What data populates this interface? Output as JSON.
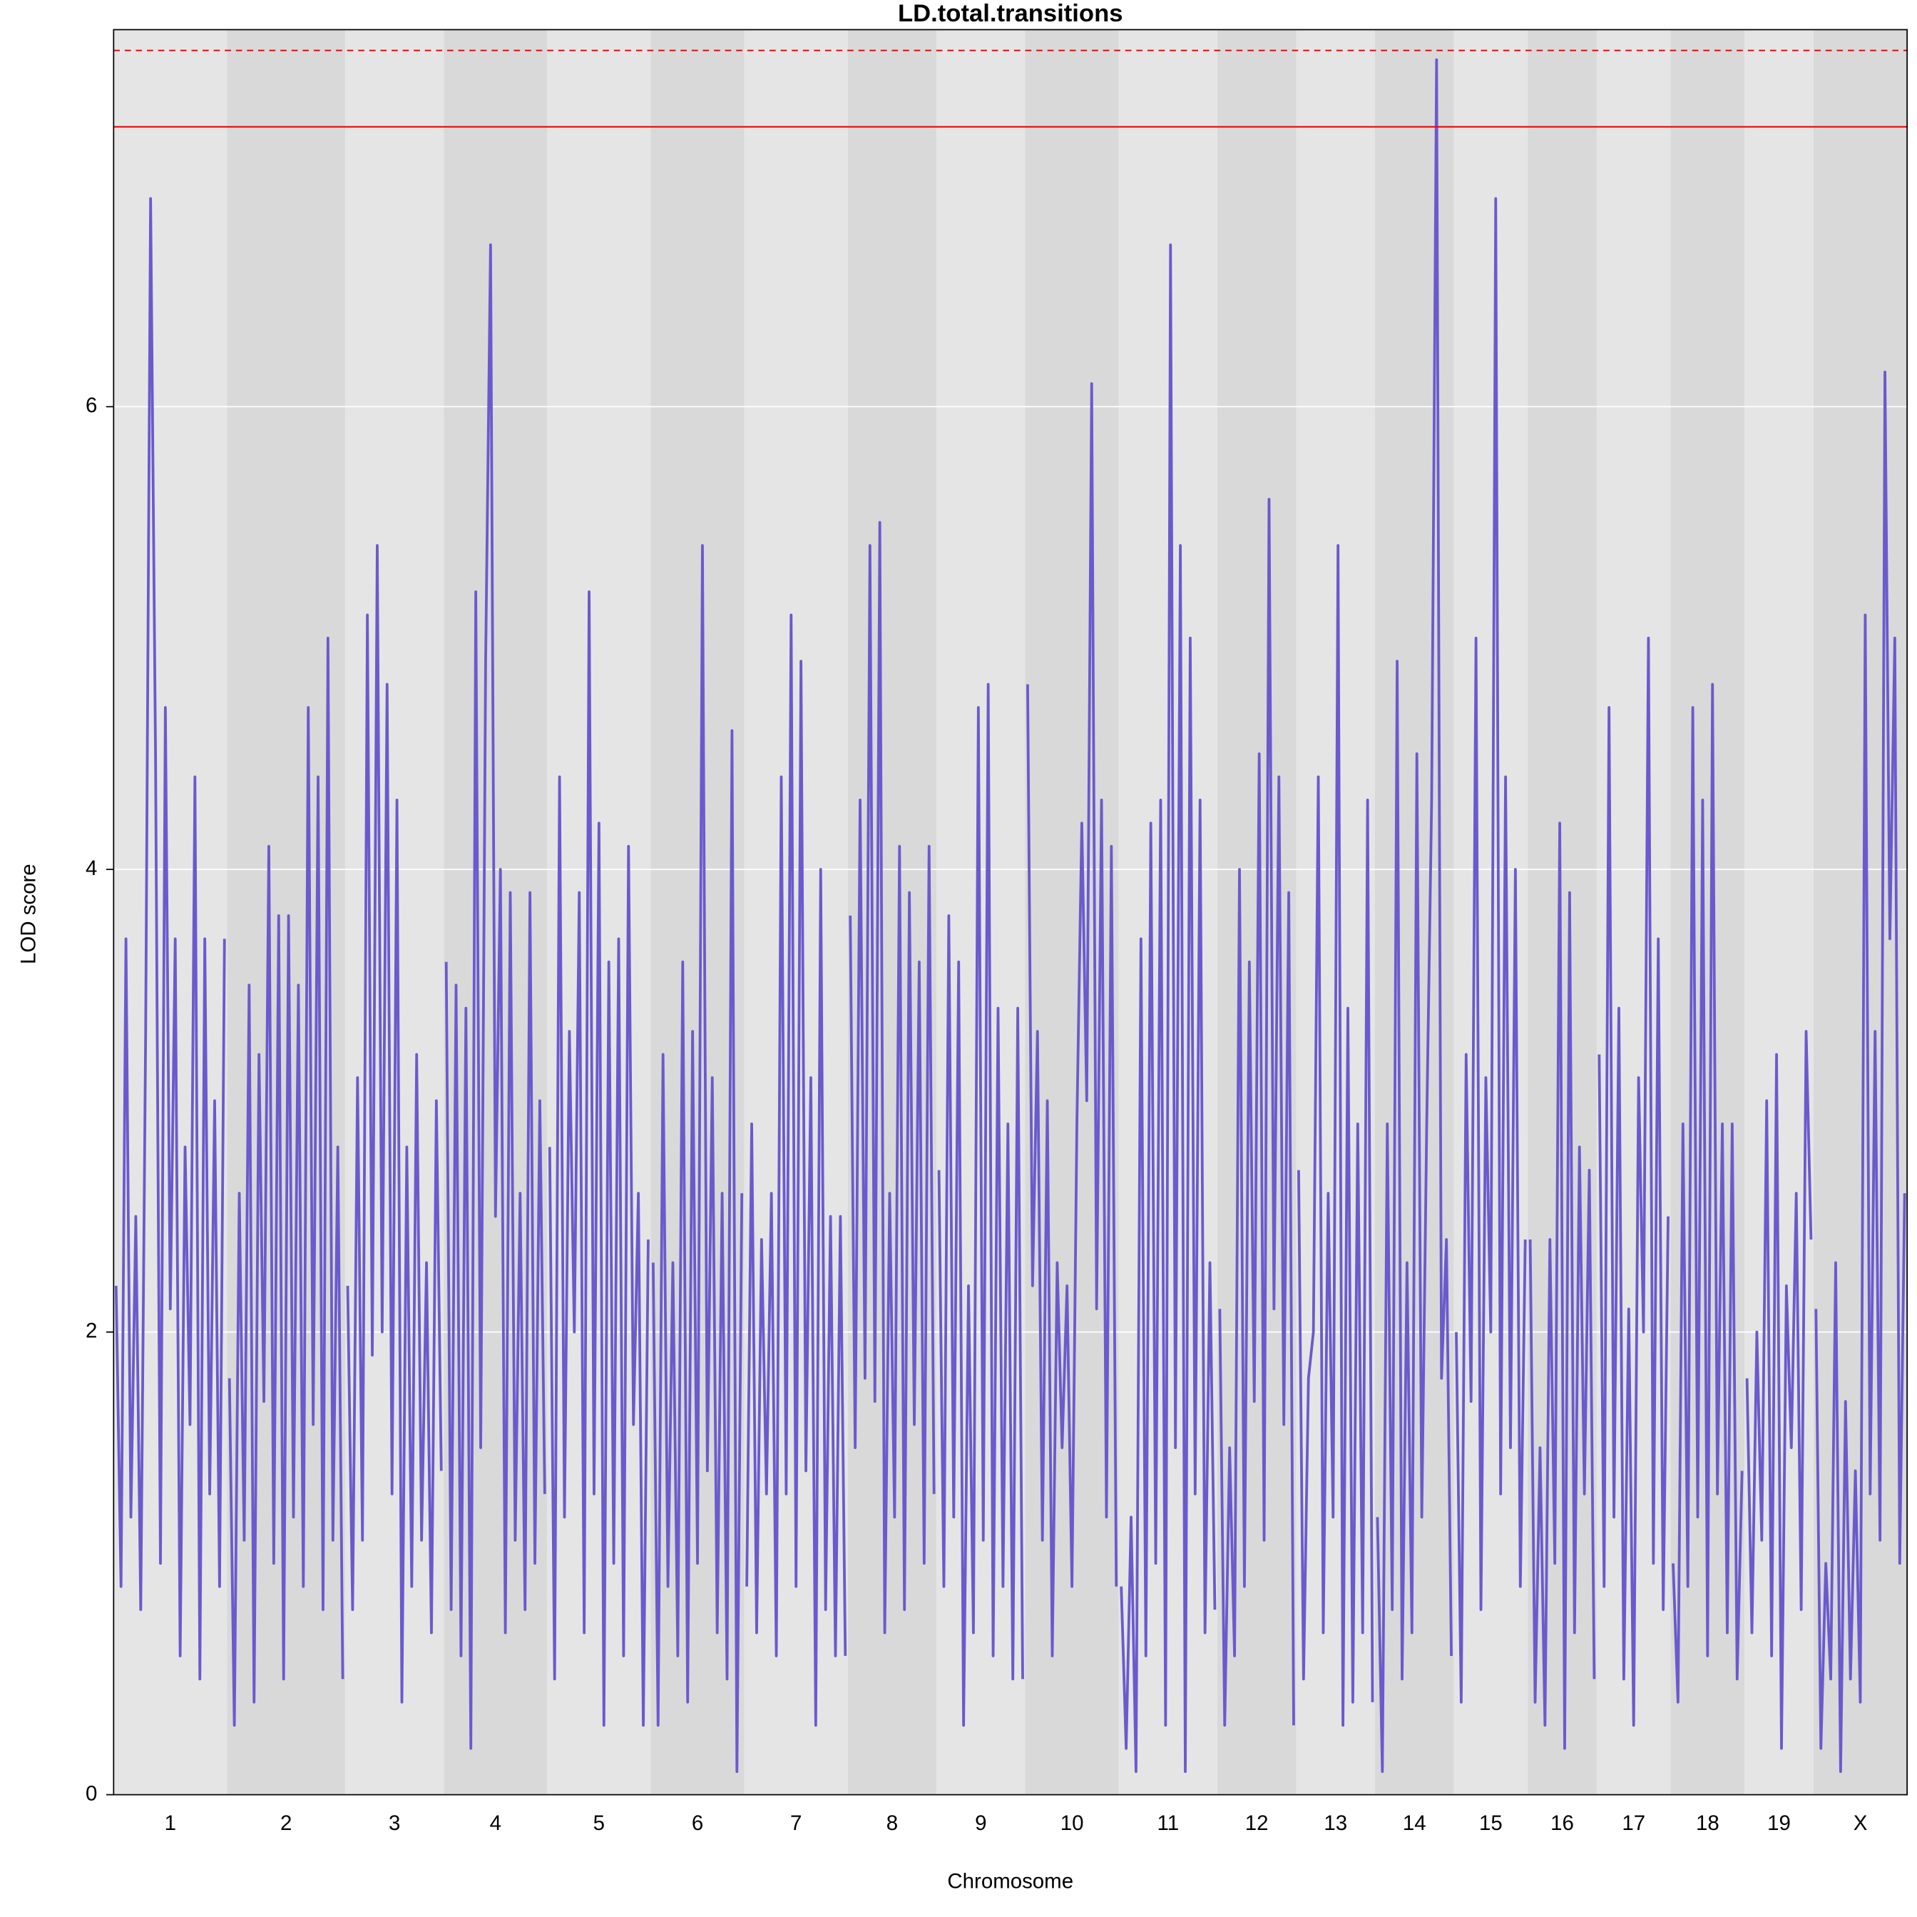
{
  "chart_data": {
    "type": "line",
    "title": "LD.total.transitions",
    "x_label": "Chromosome",
    "y_label": "LOD score",
    "ylim": [
      0,
      7.63
    ],
    "yticks": [
      0,
      2,
      4,
      6
    ],
    "grid": true,
    "color": "#6a5acd",
    "band_colors": [
      "#e5e5e5",
      "#d9d9d9"
    ],
    "thresholds": [
      {
        "value": 7.21,
        "style": "solid",
        "color": "#ff0000"
      },
      {
        "value": 7.54,
        "style": "dashed",
        "color": "#ff0000"
      }
    ],
    "series": [
      {
        "name": "1",
        "values": [
          2.2,
          0.9,
          3.7,
          1.2,
          2.5,
          0.8,
          3.3,
          6.9,
          4.5,
          1.0,
          4.7,
          2.1,
          3.7,
          0.6,
          2.8,
          1.6,
          4.4,
          0.5,
          3.7,
          1.3,
          3.0,
          0.9,
          3.7
        ]
      },
      {
        "name": "2",
        "values": [
          1.8,
          0.3,
          2.6,
          1.1,
          3.5,
          0.4,
          3.2,
          1.7,
          4.1,
          1.0,
          3.8,
          0.5,
          3.8,
          1.2,
          3.5,
          0.9,
          4.7,
          1.6,
          4.4,
          0.8,
          5.0,
          1.1,
          2.8,
          0.5
        ]
      },
      {
        "name": "3",
        "values": [
          2.2,
          0.8,
          3.1,
          1.1,
          5.1,
          1.9,
          5.4,
          2.0,
          4.8,
          1.3,
          4.3,
          0.4,
          2.8,
          0.9,
          3.2,
          1.1,
          2.3,
          0.7,
          3.0,
          1.4
        ]
      },
      {
        "name": "4",
        "values": [
          3.6,
          0.8,
          3.5,
          0.6,
          3.4,
          0.2,
          5.2,
          1.5,
          4.9,
          6.7,
          2.5,
          4.0,
          0.7,
          3.9,
          1.1,
          2.6,
          0.8,
          3.9,
          1.0,
          3.0,
          1.3
        ]
      },
      {
        "name": "5",
        "values": [
          2.8,
          0.5,
          4.4,
          1.2,
          3.3,
          2.0,
          3.9,
          0.7,
          5.2,
          1.3,
          4.2,
          0.3,
          3.6,
          1.0,
          3.7,
          0.6,
          4.1,
          1.6,
          2.6,
          0.3,
          2.4
        ]
      },
      {
        "name": "6",
        "values": [
          2.3,
          0.3,
          3.2,
          0.9,
          2.3,
          0.6,
          3.6,
          0.4,
          3.3,
          1.0,
          5.4,
          1.4,
          3.1,
          0.7,
          2.6,
          0.5,
          4.6,
          0.1,
          2.6
        ]
      },
      {
        "name": "7",
        "values": [
          0.9,
          2.9,
          0.7,
          2.4,
          1.3,
          2.6,
          0.6,
          4.4,
          1.3,
          5.1,
          0.9,
          4.9,
          1.4,
          3.1,
          0.3,
          4.0,
          0.8,
          2.5,
          0.6,
          2.5,
          0.6
        ]
      },
      {
        "name": "8",
        "values": [
          3.8,
          1.5,
          4.3,
          1.8,
          5.4,
          1.7,
          5.5,
          0.7,
          2.6,
          1.2,
          4.1,
          0.8,
          3.9,
          1.6,
          3.6,
          1.0,
          4.1,
          1.3
        ]
      },
      {
        "name": "9",
        "values": [
          2.7,
          0.9,
          3.8,
          1.2,
          3.6,
          0.3,
          2.2,
          0.7,
          4.7,
          1.1,
          4.8,
          0.6,
          3.4,
          0.9,
          2.9,
          0.5,
          3.4,
          0.5
        ]
      },
      {
        "name": "10",
        "values": [
          4.8,
          2.2,
          3.3,
          1.1,
          3.0,
          0.6,
          2.3,
          1.5,
          2.2,
          0.9,
          2.9,
          4.2,
          3.0,
          6.1,
          2.1,
          4.3,
          1.2,
          4.1,
          0.9
        ]
      },
      {
        "name": "11",
        "values": [
          0.9,
          0.2,
          1.2,
          0.1,
          3.7,
          0.6,
          4.2,
          1.0,
          4.3,
          0.3,
          6.7,
          1.5,
          5.4,
          0.1,
          5.0,
          1.3,
          4.3,
          0.7,
          2.3,
          0.8
        ]
      },
      {
        "name": "12",
        "values": [
          2.1,
          0.3,
          1.5,
          0.6,
          4.0,
          0.9,
          3.6,
          1.7,
          4.5,
          1.1,
          5.6,
          2.1,
          4.4,
          1.6,
          3.9,
          0.3
        ]
      },
      {
        "name": "13",
        "values": [
          2.7,
          0.5,
          1.8,
          2.0,
          4.4,
          0.7,
          2.6,
          1.2,
          5.4,
          0.3,
          3.4,
          0.4,
          2.9,
          0.7,
          4.3,
          0.4
        ]
      },
      {
        "name": "14",
        "values": [
          1.2,
          0.1,
          2.9,
          0.8,
          4.9,
          0.5,
          2.3,
          0.7,
          4.5,
          1.2,
          2.9,
          4.3,
          7.5,
          1.8,
          2.4,
          0.6
        ]
      },
      {
        "name": "15",
        "values": [
          2.0,
          0.4,
          3.2,
          1.7,
          5.0,
          0.8,
          3.1,
          2.0,
          6.9,
          1.3,
          4.4,
          1.5,
          4.0,
          0.9,
          2.4
        ]
      },
      {
        "name": "16",
        "values": [
          2.4,
          0.4,
          1.5,
          0.3,
          2.4,
          1.0,
          4.2,
          0.2,
          3.9,
          0.7,
          2.8,
          1.3,
          2.7,
          0.5
        ]
      },
      {
        "name": "17",
        "values": [
          3.2,
          0.9,
          4.7,
          1.2,
          3.4,
          0.5,
          2.1,
          0.3,
          3.1,
          2.0,
          5.0,
          1.0,
          3.7,
          0.8,
          2.5
        ]
      },
      {
        "name": "18",
        "values": [
          1.0,
          0.4,
          2.9,
          0.9,
          4.7,
          1.2,
          4.3,
          0.6,
          4.8,
          1.3,
          2.9,
          0.7,
          2.9,
          0.5,
          1.4
        ]
      },
      {
        "name": "19",
        "values": [
          1.8,
          0.7,
          2.0,
          1.1,
          3.0,
          0.6,
          3.2,
          0.2,
          2.2,
          1.5,
          2.6,
          0.8,
          3.3,
          2.4
        ]
      },
      {
        "name": "X",
        "values": [
          2.1,
          0.2,
          1.0,
          0.5,
          2.3,
          0.1,
          1.7,
          0.5,
          1.4,
          0.4,
          5.1,
          1.3,
          3.3,
          1.1,
          6.15,
          3.7,
          5.0,
          1.0,
          2.6
        ]
      }
    ]
  }
}
